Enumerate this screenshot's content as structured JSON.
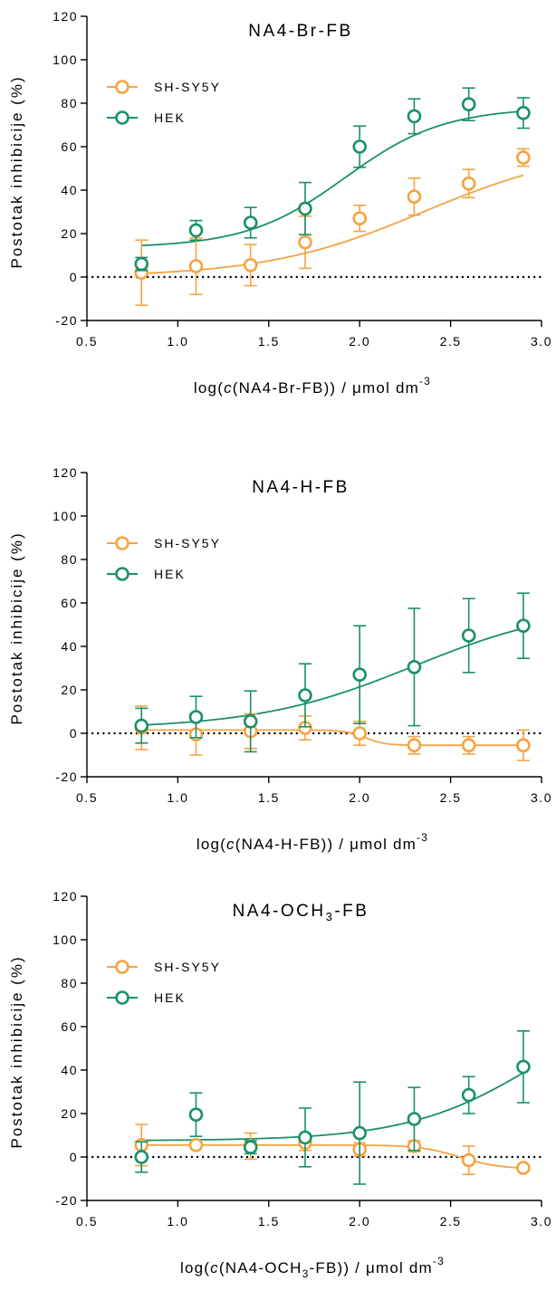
{
  "colors": {
    "sh_sy5y": "#f5a343",
    "hek": "#1a9068",
    "axis": "#000000"
  },
  "chart_data": [
    {
      "type": "scatter",
      "title_main": "NA4-Br-FB",
      "title_sub": "",
      "title_suffix": "",
      "ylabel": "Postotak inhibicije (%)",
      "xlabel_prefix": "log(",
      "xlabel_c": "c",
      "xlabel_mid": "(NA4-Br-FB",
      "xlabel_sub": "",
      "xlabel_tail": "-FB",
      "xlabel_end": ")) / μmol dm",
      "xlabel_exp": "-3",
      "xlim": [
        0.5,
        3.0
      ],
      "ylim": [
        -20,
        120
      ],
      "xticks": [
        "0.5",
        "1.0",
        "1.5",
        "2.0",
        "2.5",
        "3.0"
      ],
      "yticks": [
        "-20",
        "0",
        "20",
        "40",
        "60",
        "80",
        "100",
        "120"
      ],
      "reference_line_y": 0,
      "legend": "top-left",
      "x": [
        0.8,
        1.1,
        1.4,
        1.7,
        2.0,
        2.3,
        2.6,
        2.9
      ],
      "series": [
        {
          "name": "SH-SY5Y",
          "color": "#f5a343",
          "y": [
            2,
            5,
            5.5,
            16,
            27,
            37,
            43,
            55
          ],
          "err": [
            15,
            13,
            9.5,
            12,
            6,
            8.5,
            6.5,
            4
          ],
          "fit": {
            "bottom": 0,
            "top": 60,
            "logec50": 2.35,
            "hill": 1.0
          }
        },
        {
          "name": "HEK",
          "color": "#1a9068",
          "y": [
            6,
            21.5,
            25,
            31.5,
            60,
            74,
            79.5,
            75.5
          ],
          "err": [
            3,
            4.5,
            7,
            12,
            9.5,
            8,
            7.5,
            7
          ],
          "fit": {
            "bottom": 13.5,
            "top": 78,
            "logec50": 1.92,
            "hill": 1.6
          }
        }
      ]
    },
    {
      "type": "scatter",
      "title_main": "NA4-H-FB",
      "title_sub": "",
      "title_suffix": "",
      "ylabel": "Postotak inhibicije (%)",
      "xlabel_prefix": "log(",
      "xlabel_c": "c",
      "xlabel_mid": "(NA4-H-FB",
      "xlabel_sub": "",
      "xlabel_tail": "-FB",
      "xlabel_end": ")) / μmol dm",
      "xlabel_exp": "-3",
      "xlim": [
        0.5,
        3.0
      ],
      "ylim": [
        -20,
        120
      ],
      "xticks": [
        "0.5",
        "1.0",
        "1.5",
        "2.0",
        "2.5",
        "3.0"
      ],
      "yticks": [
        "-20",
        "0",
        "20",
        "40",
        "60",
        "80",
        "100",
        "120"
      ],
      "reference_line_y": 0,
      "legend": "top-left",
      "x": [
        0.8,
        1.1,
        1.4,
        1.7,
        2.0,
        2.3,
        2.6,
        2.9
      ],
      "series": [
        {
          "name": "SH-SY5Y",
          "color": "#f5a343",
          "y": [
            2.5,
            -0.5,
            1,
            2.5,
            0,
            -5.5,
            -5.5,
            -5.5
          ],
          "err": [
            10,
            9.5,
            8,
            5.5,
            5.5,
            4,
            4,
            7
          ],
          "fit": {
            "bottom": 1.5,
            "top": -5.5,
            "logec50": 2.03,
            "hill": 8.0
          }
        },
        {
          "name": "HEK",
          "color": "#1a9068",
          "y": [
            3.5,
            7.5,
            5.5,
            17.5,
            27,
            30.5,
            45,
            49.5
          ],
          "err": [
            8,
            9.5,
            14,
            14.5,
            22.5,
            27,
            17,
            15
          ],
          "fit": {
            "bottom": 2,
            "top": 60,
            "logec50": 2.3,
            "hill": 1.0
          }
        }
      ]
    },
    {
      "type": "scatter",
      "title_main": "NA4-OCH",
      "title_sub": "3",
      "title_suffix": "-FB",
      "ylabel": "Postotak inhibicije (%)",
      "xlabel_prefix": "log(",
      "xlabel_c": "c",
      "xlabel_mid": "(NA4-OCH",
      "xlabel_sub": "3",
      "xlabel_tail": "-FB",
      "xlabel_end": ")) / μmol dm",
      "xlabel_exp": "-3",
      "xlim": [
        0.5,
        3.0
      ],
      "ylim": [
        -20,
        120
      ],
      "xticks": [
        "0.5",
        "1.0",
        "1.5",
        "2.0",
        "2.5",
        "3.0"
      ],
      "yticks": [
        "-20",
        "0",
        "20",
        "40",
        "60",
        "80",
        "100",
        "120"
      ],
      "reference_line_y": 0,
      "legend": "top-left",
      "x": [
        0.8,
        1.1,
        1.4,
        1.7,
        2.0,
        2.3,
        2.6,
        2.9
      ],
      "series": [
        {
          "name": "SH-SY5Y",
          "color": "#f5a343",
          "y": [
            5.5,
            5.5,
            5,
            6.5,
            3.5,
            5,
            -1.5,
            -5
          ],
          "err": [
            9.5,
            0,
            6,
            3.5,
            3,
            2.5,
            6.5,
            0
          ],
          "fit": {
            "bottom": 5.5,
            "top": -5.5,
            "logec50": 2.55,
            "hill": 4.0
          }
        },
        {
          "name": "HEK",
          "color": "#1a9068",
          "y": [
            0,
            19.5,
            4.5,
            9,
            11,
            17.5,
            28.5,
            41.5
          ],
          "err": [
            7,
            10,
            3,
            13.5,
            23.5,
            14.5,
            8.5,
            16.5
          ],
          "fit": {
            "bottom": 7.5,
            "top": 80,
            "logec50": 3.0,
            "hill": 1.2
          }
        }
      ]
    }
  ]
}
